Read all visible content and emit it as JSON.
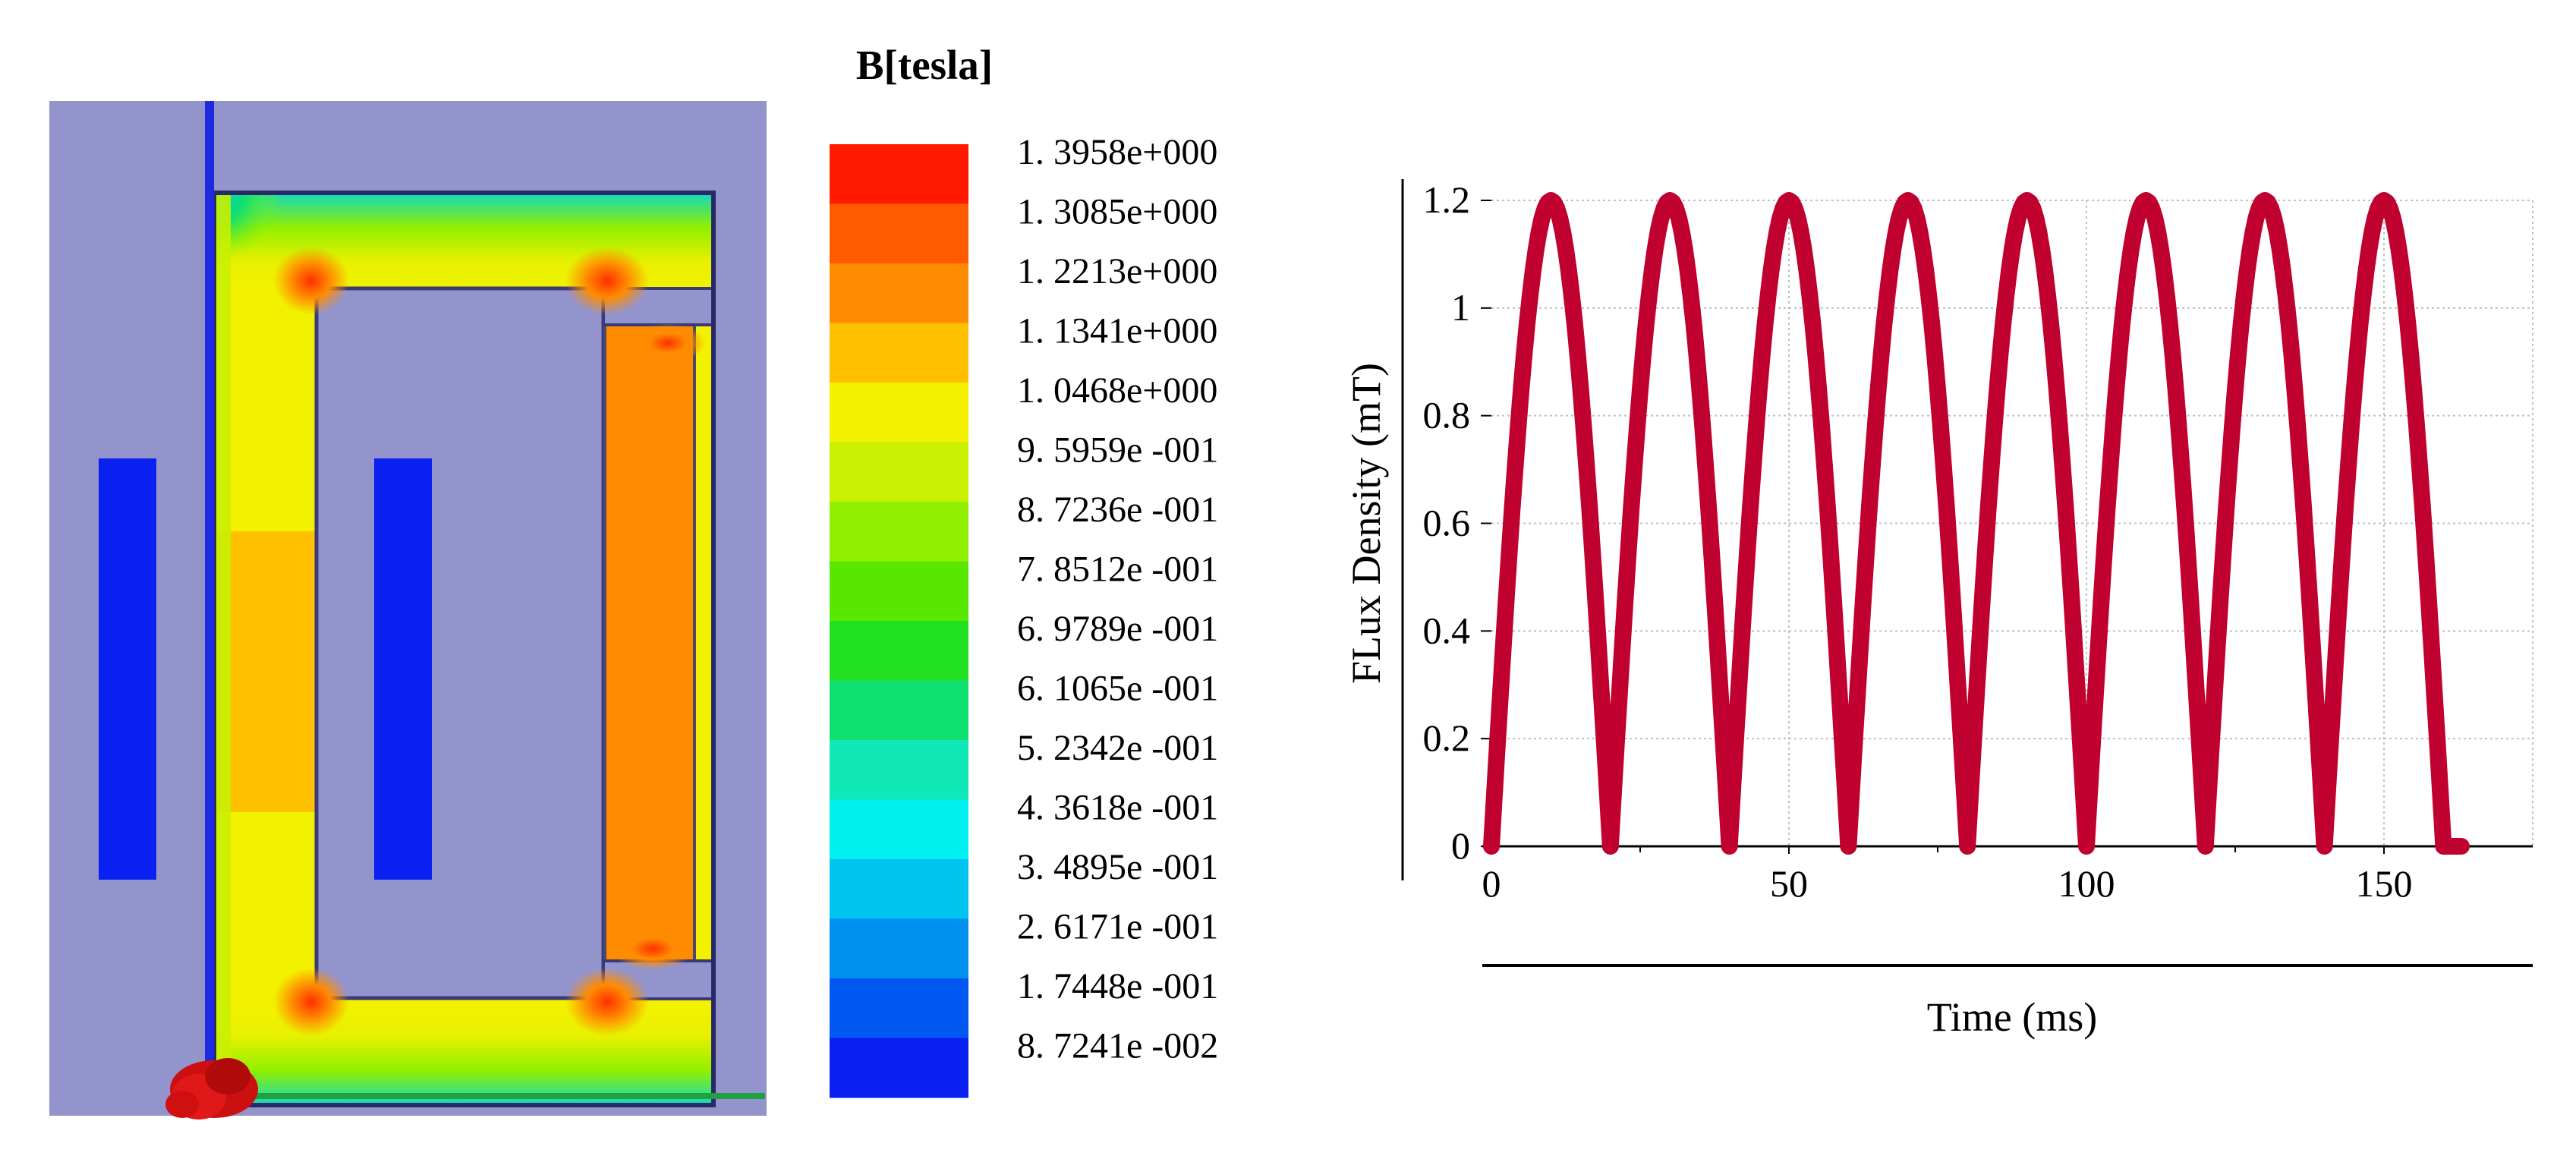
{
  "legend": {
    "title": "B[tesla]",
    "colors": [
      "#ff1a00",
      "#ff5a00",
      "#ff8c00",
      "#ffc000",
      "#f2f200",
      "#c8f000",
      "#90f000",
      "#58e800",
      "#20e020",
      "#10e070",
      "#10e8b8",
      "#00f0f0",
      "#00c4f0",
      "#0090f0",
      "#0058f0",
      "#0a20f0"
    ],
    "labels": [
      "1. 3958e+000",
      "1. 3085e+000",
      "1. 2213e+000",
      "1. 1341e+000",
      "1. 0468e+000",
      "9. 5959e -001",
      "8. 7236e -001",
      "7. 8512e -001",
      "6. 9789e -001",
      "6. 1065e -001",
      "5. 2342e -001",
      "4. 3618e -001",
      "3. 4895e -001",
      "2. 6171e -001",
      "1. 7448e -001",
      "8. 7241e -002"
    ]
  },
  "simulation": {
    "background_color": "#9494cc",
    "coil_color": "#0a20f0"
  },
  "chart_data": {
    "type": "line",
    "title": "",
    "xlabel": "Time (ms)",
    "ylabel": "FLux Density (mT)",
    "xlim": [
      0,
      175
    ],
    "ylim": [
      0,
      1.2
    ],
    "xticks": [
      0,
      50,
      100,
      150
    ],
    "yticks": [
      0,
      0.2,
      0.4,
      0.6,
      0.8,
      1,
      1.2
    ],
    "grid": true,
    "line_color": "#c0002e",
    "series": [
      {
        "name": "FLux Density",
        "x": [
          0,
          10,
          20,
          30,
          40,
          50,
          60,
          70,
          80,
          90,
          100,
          110,
          120,
          130,
          140,
          150,
          160,
          163
        ],
        "y": [
          0,
          1.2,
          0,
          1.2,
          0,
          1.2,
          0,
          1.2,
          0,
          1.2,
          0,
          1.2,
          0,
          1.2,
          0,
          1.2,
          0,
          0
        ]
      }
    ]
  }
}
